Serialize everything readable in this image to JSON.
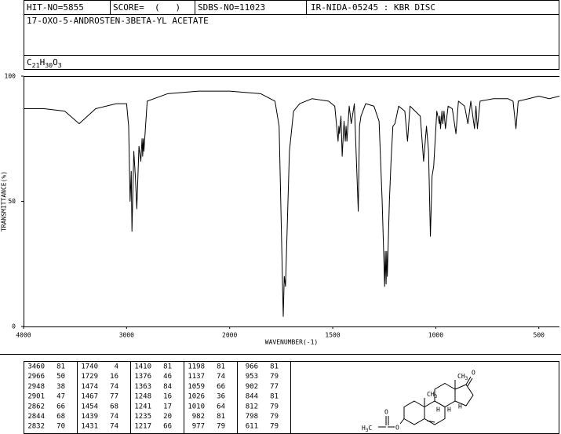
{
  "header": {
    "hit": "HIT-NO=5855",
    "score": "SCORE=  (   )",
    "sdbs": "SDBS-NO=11023",
    "source": "IR-NIDA-05245 : KBR DISC",
    "name": "17-OXO-5-ANDROSTEN-3BETA-YL ACETATE",
    "formula": "C21H30O3"
  },
  "chart_data": {
    "type": "line",
    "color": "#000000",
    "x_label": "WAVENUMBER(-1)",
    "y_label": "TRANSMITTANCE(%)",
    "xlim": [
      4000,
      400
    ],
    "x_expand_below": 2000,
    "x_expand_factor": 2,
    "xticks": [
      4000,
      3000,
      2000,
      1500,
      1000,
      500
    ],
    "ylim": [
      0,
      100
    ],
    "yticks": [
      0,
      50,
      100
    ],
    "x": [
      4000,
      3800,
      3600,
      3460,
      3300,
      3100,
      3000,
      2980,
      2966,
      2955,
      2948,
      2930,
      2915,
      2901,
      2880,
      2862,
      2850,
      2844,
      2838,
      2832,
      2800,
      2600,
      2300,
      2000,
      1850,
      1780,
      1760,
      1740,
      1735,
      1729,
      1710,
      1690,
      1660,
      1600,
      1520,
      1490,
      1474,
      1470,
      1467,
      1460,
      1454,
      1445,
      1439,
      1435,
      1431,
      1420,
      1410,
      1395,
      1376,
      1370,
      1363,
      1340,
      1300,
      1275,
      1260,
      1248,
      1245,
      1241,
      1238,
      1235,
      1225,
      1217,
      1208,
      1198,
      1180,
      1150,
      1137,
      1125,
      1100,
      1075,
      1059,
      1045,
      1035,
      1026,
      1018,
      1010,
      995,
      982,
      980,
      977,
      970,
      966,
      960,
      953,
      940,
      920,
      902,
      890,
      860,
      844,
      830,
      812,
      805,
      798,
      785,
      720,
      650,
      625,
      611,
      600,
      550,
      500,
      450,
      400
    ],
    "values": [
      87,
      87,
      86,
      81,
      87,
      89,
      89,
      80,
      50,
      62,
      38,
      70,
      60,
      47,
      72,
      66,
      75,
      68,
      75,
      70,
      90,
      93,
      94,
      94,
      93,
      90,
      80,
      4,
      20,
      16,
      70,
      86,
      89,
      91,
      90,
      88,
      74,
      80,
      77,
      84,
      68,
      82,
      74,
      80,
      74,
      88,
      81,
      89,
      46,
      80,
      84,
      89,
      88,
      82,
      50,
      16,
      30,
      17,
      30,
      20,
      50,
      66,
      80,
      81,
      88,
      86,
      74,
      88,
      86,
      84,
      66,
      80,
      70,
      36,
      60,
      64,
      86,
      81,
      84,
      79,
      86,
      81,
      86,
      79,
      88,
      87,
      77,
      90,
      88,
      81,
      90,
      79,
      88,
      79,
      90,
      91,
      91,
      90,
      79,
      90,
      91,
      92,
      91,
      92
    ]
  },
  "peak_table": [
    [
      [
        3460,
        81
      ],
      [
        2966,
        50
      ],
      [
        2948,
        38
      ],
      [
        2901,
        47
      ],
      [
        2862,
        66
      ],
      [
        2844,
        68
      ],
      [
        2832,
        70
      ]
    ],
    [
      [
        1740,
        4
      ],
      [
        1729,
        16
      ],
      [
        1474,
        74
      ],
      [
        1467,
        77
      ],
      [
        1454,
        68
      ],
      [
        1439,
        74
      ],
      [
        1431,
        74
      ]
    ],
    [
      [
        1410,
        81
      ],
      [
        1376,
        46
      ],
      [
        1363,
        84
      ],
      [
        1248,
        16
      ],
      [
        1241,
        17
      ],
      [
        1235,
        20
      ],
      [
        1217,
        66
      ]
    ],
    [
      [
        1198,
        81
      ],
      [
        1137,
        74
      ],
      [
        1059,
        66
      ],
      [
        1026,
        36
      ],
      [
        1010,
        64
      ],
      [
        982,
        81
      ],
      [
        977,
        79
      ]
    ],
    [
      [
        966,
        81
      ],
      [
        953,
        79
      ],
      [
        902,
        77
      ],
      [
        844,
        81
      ],
      [
        812,
        79
      ],
      [
        798,
        79
      ],
      [
        611,
        79
      ]
    ]
  ],
  "structure": {
    "labels": [
      "CH3",
      "CH3",
      "O",
      "H",
      "H",
      "H",
      "O",
      "O",
      "H3C"
    ]
  }
}
